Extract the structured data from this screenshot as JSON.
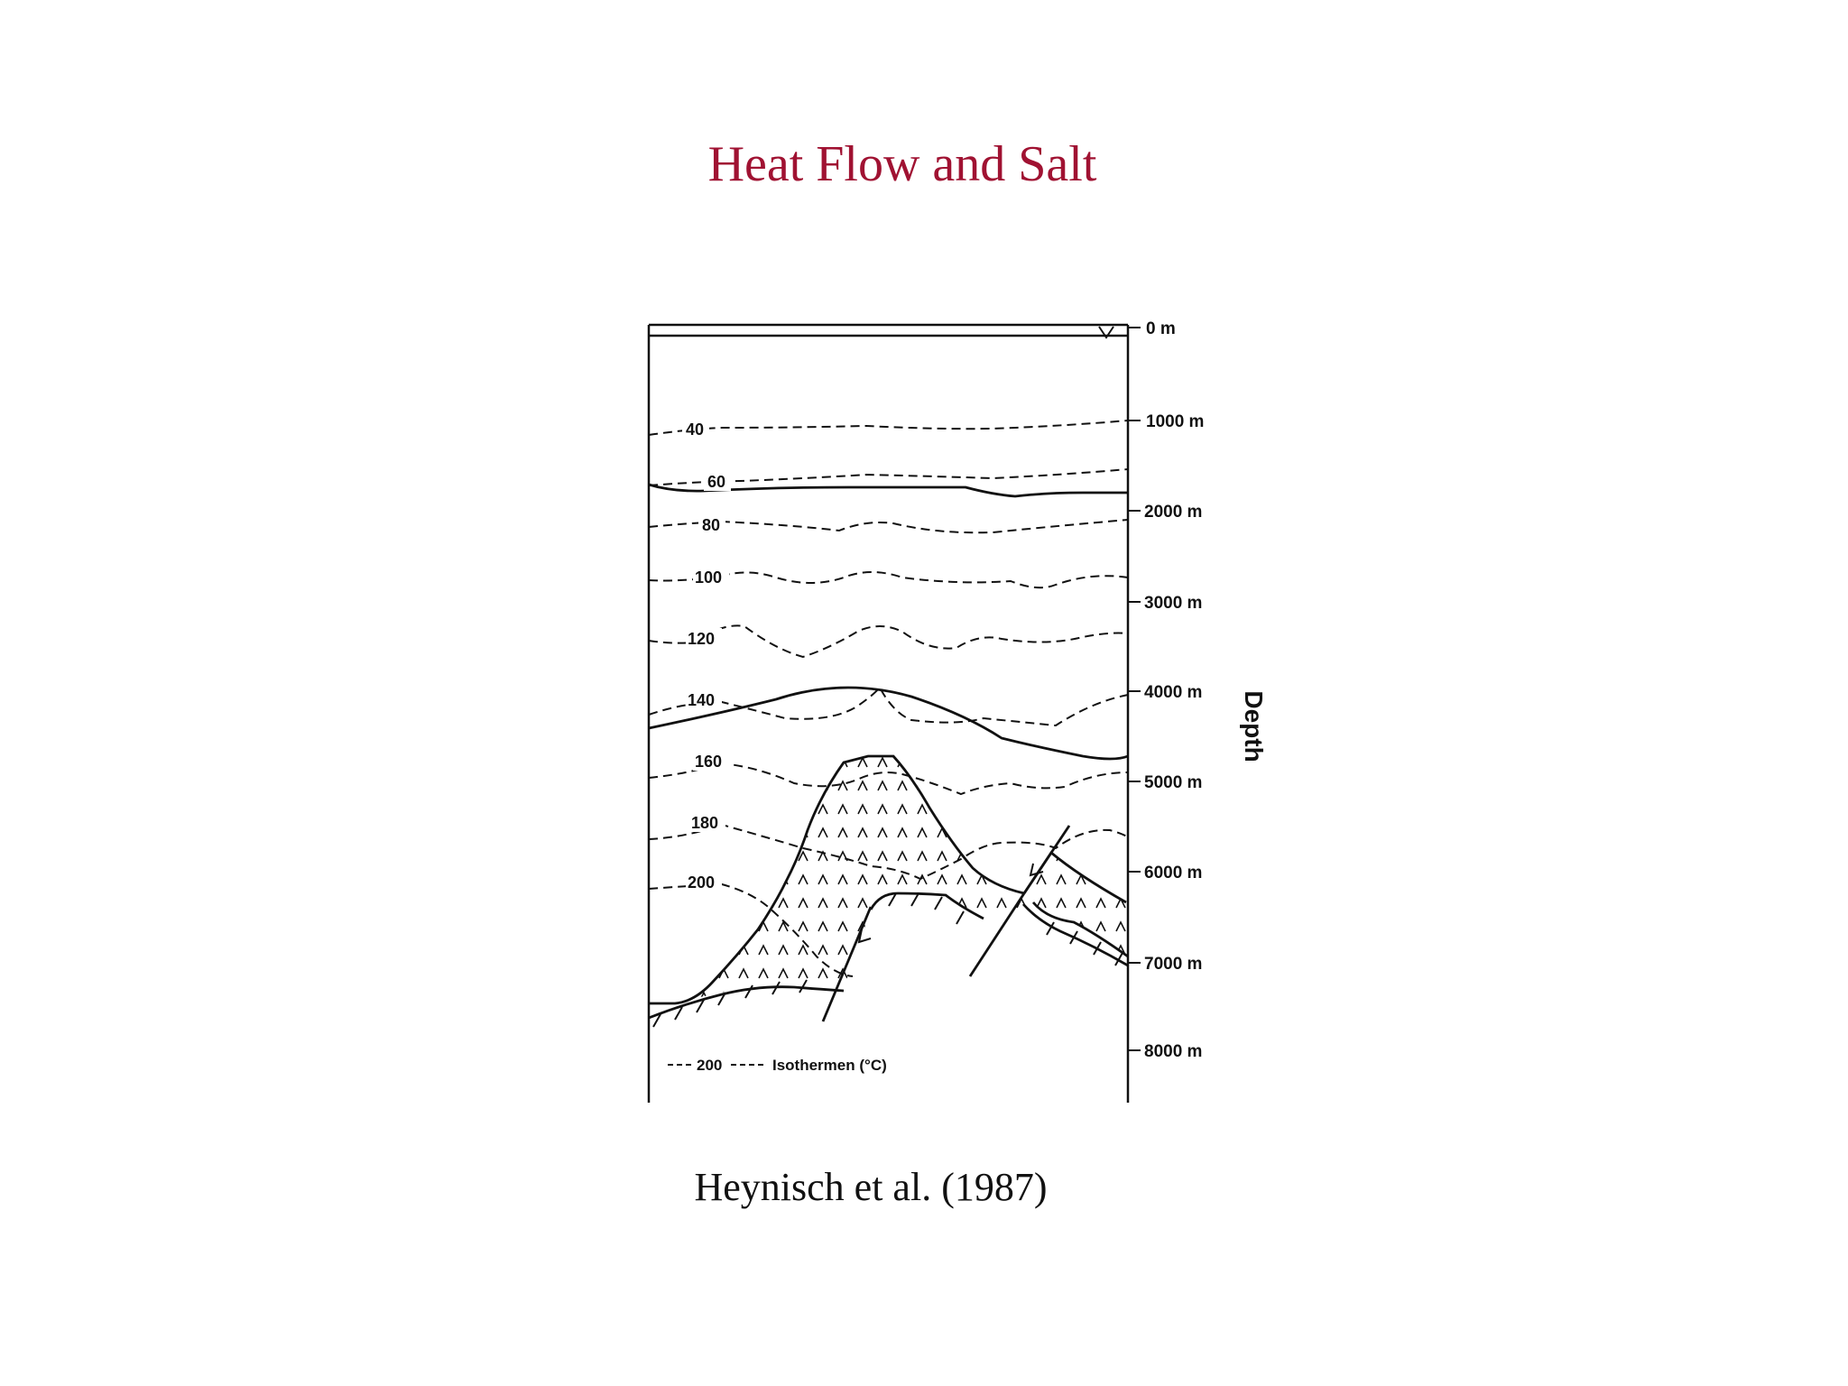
{
  "slide": {
    "title": "Heat Flow and Salt",
    "citation": "Heynisch et al. (1987)"
  },
  "figure": {
    "axis_title": "Depth",
    "depth_labels": [
      "0 m",
      "1000 m",
      "2000 m",
      "3000 m",
      "4000 m",
      "5000 m",
      "6000 m",
      "7000 m",
      "8000 m"
    ],
    "isotherm_labels": [
      "40",
      "60",
      "80",
      "100",
      "120",
      "140",
      "160",
      "180",
      "200"
    ],
    "legend": {
      "value": "200",
      "text": "Isothermen (°C)"
    }
  }
}
